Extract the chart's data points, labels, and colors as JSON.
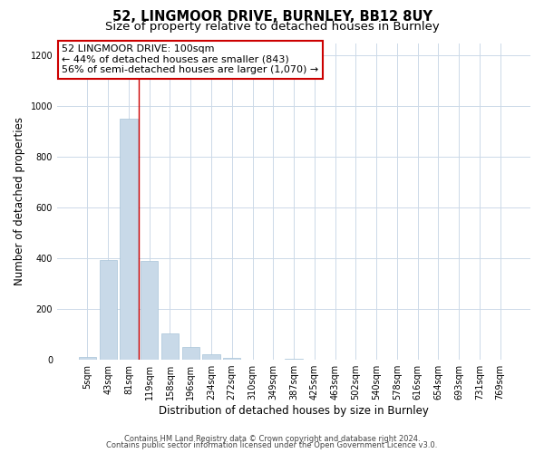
{
  "title": "52, LINGMOOR DRIVE, BURNLEY, BB12 8UY",
  "subtitle": "Size of property relative to detached houses in Burnley",
  "xlabel": "Distribution of detached houses by size in Burnley",
  "ylabel": "Number of detached properties",
  "bar_labels": [
    "5sqm",
    "43sqm",
    "81sqm",
    "119sqm",
    "158sqm",
    "196sqm",
    "234sqm",
    "272sqm",
    "310sqm",
    "349sqm",
    "387sqm",
    "425sqm",
    "463sqm",
    "502sqm",
    "540sqm",
    "578sqm",
    "616sqm",
    "654sqm",
    "693sqm",
    "731sqm",
    "769sqm"
  ],
  "bar_values": [
    10,
    395,
    950,
    390,
    105,
    52,
    22,
    8,
    2,
    0,
    5,
    0,
    0,
    0,
    0,
    0,
    0,
    0,
    0,
    0,
    0
  ],
  "bar_color": "#c8d9e8",
  "bar_edge_color": "#a8c4d8",
  "vline_x": 2.5,
  "vline_color": "#cc0000",
  "annotation_line1": "52 LINGMOOR DRIVE: 100sqm",
  "annotation_line2": "← 44% of detached houses are smaller (843)",
  "annotation_line3": "56% of semi-detached houses are larger (1,070) →",
  "annotation_box_color": "#cc0000",
  "ylim": [
    0,
    1250
  ],
  "yticks": [
    0,
    200,
    400,
    600,
    800,
    1000,
    1200
  ],
  "footer_line1": "Contains HM Land Registry data © Crown copyright and database right 2024.",
  "footer_line2": "Contains public sector information licensed under the Open Government Licence v3.0.",
  "background_color": "#ffffff",
  "grid_color": "#ccd9e8",
  "title_fontsize": 10.5,
  "subtitle_fontsize": 9.5,
  "axis_label_fontsize": 8.5,
  "tick_fontsize": 7,
  "annotation_fontsize": 8,
  "footer_fontsize": 6
}
